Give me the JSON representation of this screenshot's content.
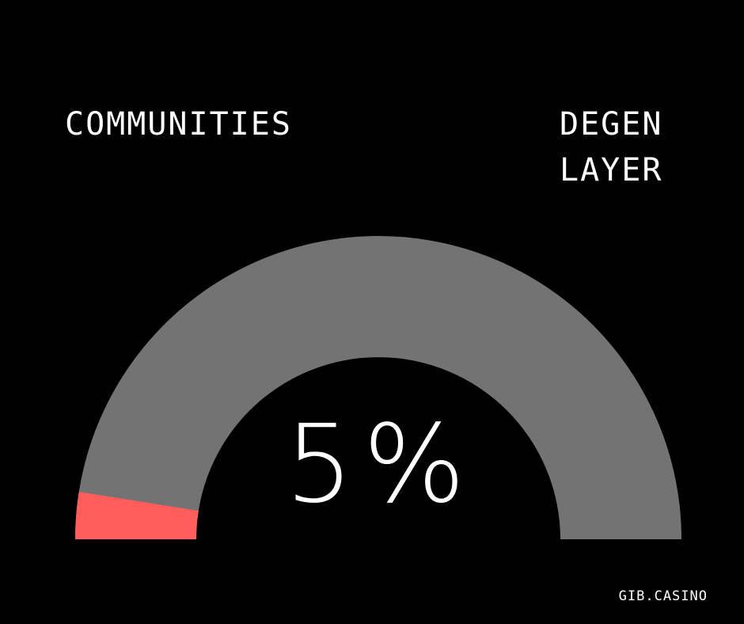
{
  "chart_data": {
    "type": "gauge",
    "min_label": "COMMUNITIES",
    "max_label_lines": [
      "DEGEN",
      "LAYER"
    ],
    "value": 5,
    "value_text": "5%",
    "range": [
      0,
      100
    ],
    "filled_color": "#ff5c5c",
    "track_color": "#737373"
  },
  "footer": {
    "brand": "GIB.CASINO"
  },
  "colors": {
    "background": "#000000",
    "text": "#ffffff"
  }
}
